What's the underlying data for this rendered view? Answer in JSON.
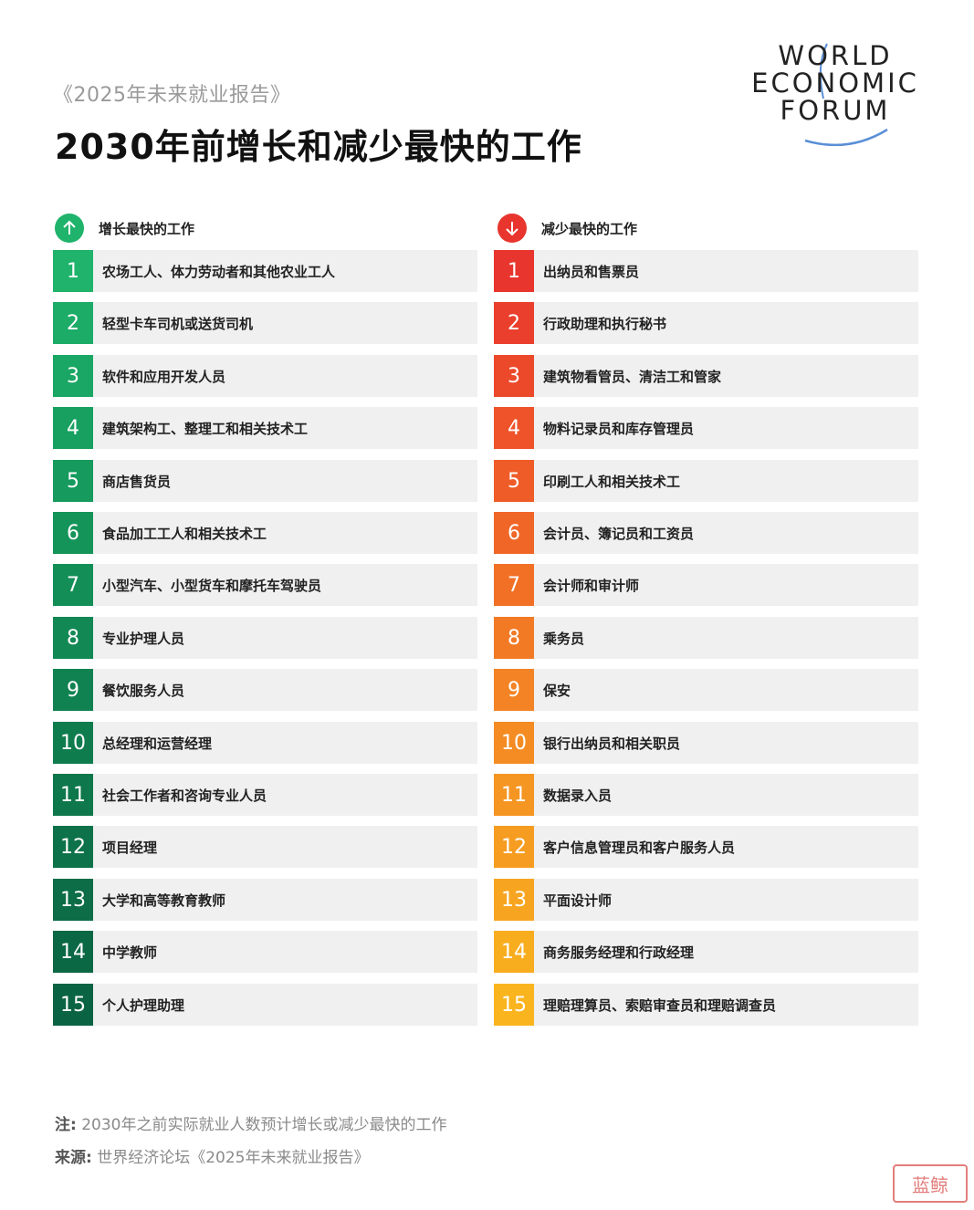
{
  "header": {
    "report_name": "《2025年未来就业报告》",
    "title": "2030年前增长和减少最快的工作"
  },
  "logo": {
    "lines": [
      "WORLD",
      "ECONOMIC",
      "FORUM"
    ],
    "arc_color": "#5a8fd6"
  },
  "growing": {
    "label": "增长最快的工作",
    "icon": "arrow-up-icon",
    "icon_color": "#1fb36b",
    "items": [
      {
        "num": "1",
        "label": "农场工人、体力劳动者和其他农业工人",
        "color": "#1fb36b"
      },
      {
        "num": "2",
        "label": "轻型卡车司机或送货司机",
        "color": "#1cac68"
      },
      {
        "num": "3",
        "label": "软件和应用开发人员",
        "color": "#1aa664"
      },
      {
        "num": "4",
        "label": "建筑架构工、整理工和相关技术工",
        "color": "#18a061"
      },
      {
        "num": "5",
        "label": "商店售货员",
        "color": "#169a5e"
      },
      {
        "num": "6",
        "label": "食品加工工人和相关技术工",
        "color": "#15945a"
      },
      {
        "num": "7",
        "label": "小型汽车、小型货车和摩托车驾驶员",
        "color": "#138e57"
      },
      {
        "num": "8",
        "label": "专业护理人员",
        "color": "#128854"
      },
      {
        "num": "9",
        "label": "餐饮服务人员",
        "color": "#108251"
      },
      {
        "num": "10",
        "label": "总经理和运营经理",
        "color": "#0f7c4e"
      },
      {
        "num": "11",
        "label": "社会工作者和咨询专业人员",
        "color": "#0e774b"
      },
      {
        "num": "12",
        "label": "项目经理",
        "color": "#0d7249"
      },
      {
        "num": "13",
        "label": "大学和高等教育教师",
        "color": "#0c6d46"
      },
      {
        "num": "14",
        "label": "中学教师",
        "color": "#0b6844"
      },
      {
        "num": "15",
        "label": "个人护理助理",
        "color": "#0a6342"
      }
    ]
  },
  "declining": {
    "label": "减少最快的工作",
    "icon": "arrow-down-icon",
    "icon_color": "#e8352e",
    "items": [
      {
        "num": "1",
        "label": "出纳员和售票员",
        "color": "#e8352e"
      },
      {
        "num": "2",
        "label": "行政助理和执行秘书",
        "color": "#ea3f2c"
      },
      {
        "num": "3",
        "label": "建筑物看管员、清洁工和管家",
        "color": "#ec492b"
      },
      {
        "num": "4",
        "label": "物料记录员和库存管理员",
        "color": "#ee532a"
      },
      {
        "num": "5",
        "label": "印刷工人和相关技术工",
        "color": "#ef5c28"
      },
      {
        "num": "6",
        "label": "会计员、簿记员和工资员",
        "color": "#f06627"
      },
      {
        "num": "7",
        "label": "会计师和审计师",
        "color": "#f17026"
      },
      {
        "num": "8",
        "label": "乘务员",
        "color": "#f27a25"
      },
      {
        "num": "9",
        "label": "保安",
        "color": "#f38324"
      },
      {
        "num": "10",
        "label": "银行出纳员和相关职员",
        "color": "#f48c23"
      },
      {
        "num": "11",
        "label": "数据录入员",
        "color": "#f59522"
      },
      {
        "num": "12",
        "label": "客户信息管理员和客户服务人员",
        "color": "#f69d21"
      },
      {
        "num": "13",
        "label": "平面设计师",
        "color": "#f7a520"
      },
      {
        "num": "14",
        "label": "商务服务经理和行政经理",
        "color": "#f8ad1f"
      },
      {
        "num": "15",
        "label": "理赔理算员、索赔审查员和理赔调查员",
        "color": "#f9b41e"
      }
    ]
  },
  "footer": {
    "note_label": "注:",
    "note_text": "2030年之前实际就业人数预计增长或减少最快的工作",
    "source_label": "来源:",
    "source_text": "世界经济论坛《2025年未来就业报告》"
  },
  "watermark": {
    "text": "蓝鲸"
  }
}
